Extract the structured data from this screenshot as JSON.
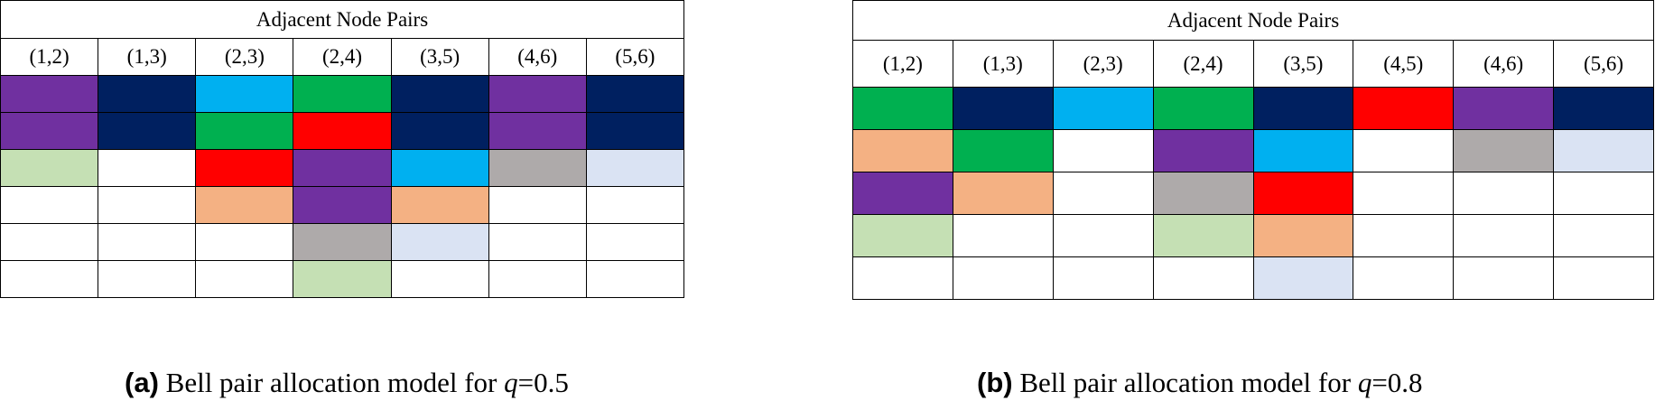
{
  "palette": {
    "white": "#ffffff",
    "purple": "#7030a0",
    "navy": "#002060",
    "skyblue": "#00b0f0",
    "green": "#00b050",
    "red": "#ff0000",
    "lightgreen": "#c5e0b4",
    "gray": "#aeaaaa",
    "lightblue": "#dae3f3",
    "peach": "#f4b183"
  },
  "panels": [
    {
      "id": "a",
      "header": "Adjacent Node Pairs",
      "columns": [
        "(1,2)",
        "(1,3)",
        "(2,3)",
        "(2,4)",
        "(3,5)",
        "(4,6)",
        "(5,6)"
      ],
      "rows": [
        [
          "purple",
          "navy",
          "skyblue",
          "green",
          "navy",
          "purple",
          "navy"
        ],
        [
          "purple",
          "navy",
          "green",
          "red",
          "navy",
          "purple",
          "navy"
        ],
        [
          "lightgreen",
          "white",
          "red",
          "purple",
          "skyblue",
          "gray",
          "lightblue"
        ],
        [
          "white",
          "white",
          "peach",
          "purple",
          "peach",
          "white",
          "white"
        ],
        [
          "white",
          "white",
          "white",
          "gray",
          "lightblue",
          "white",
          "white"
        ],
        [
          "white",
          "white",
          "white",
          "lightgreen",
          "white",
          "white",
          "white"
        ]
      ],
      "caption": {
        "tag": "(a)",
        "text": "Bell pair allocation model for",
        "var": "q",
        "value": "=0.5"
      }
    },
    {
      "id": "b",
      "header": "Adjacent Node Pairs",
      "columns": [
        "(1,2)",
        "(1,3)",
        "(2,3)",
        "(2,4)",
        "(3,5)",
        "(4,5)",
        "(4,6)",
        "(5,6)"
      ],
      "rows": [
        [
          "green",
          "navy",
          "skyblue",
          "green",
          "navy",
          "red",
          "purple",
          "navy"
        ],
        [
          "peach",
          "green",
          "white",
          "purple",
          "skyblue",
          "white",
          "gray",
          "lightblue"
        ],
        [
          "purple",
          "peach",
          "white",
          "gray",
          "red",
          "white",
          "white",
          "white"
        ],
        [
          "lightgreen",
          "white",
          "white",
          "lightgreen",
          "peach",
          "white",
          "white",
          "white"
        ],
        [
          "white",
          "white",
          "white",
          "white",
          "lightblue",
          "white",
          "white",
          "white"
        ]
      ],
      "caption": {
        "tag": "(b)",
        "text": "Bell pair allocation model for",
        "var": "q",
        "value": "=0.8"
      }
    }
  ]
}
